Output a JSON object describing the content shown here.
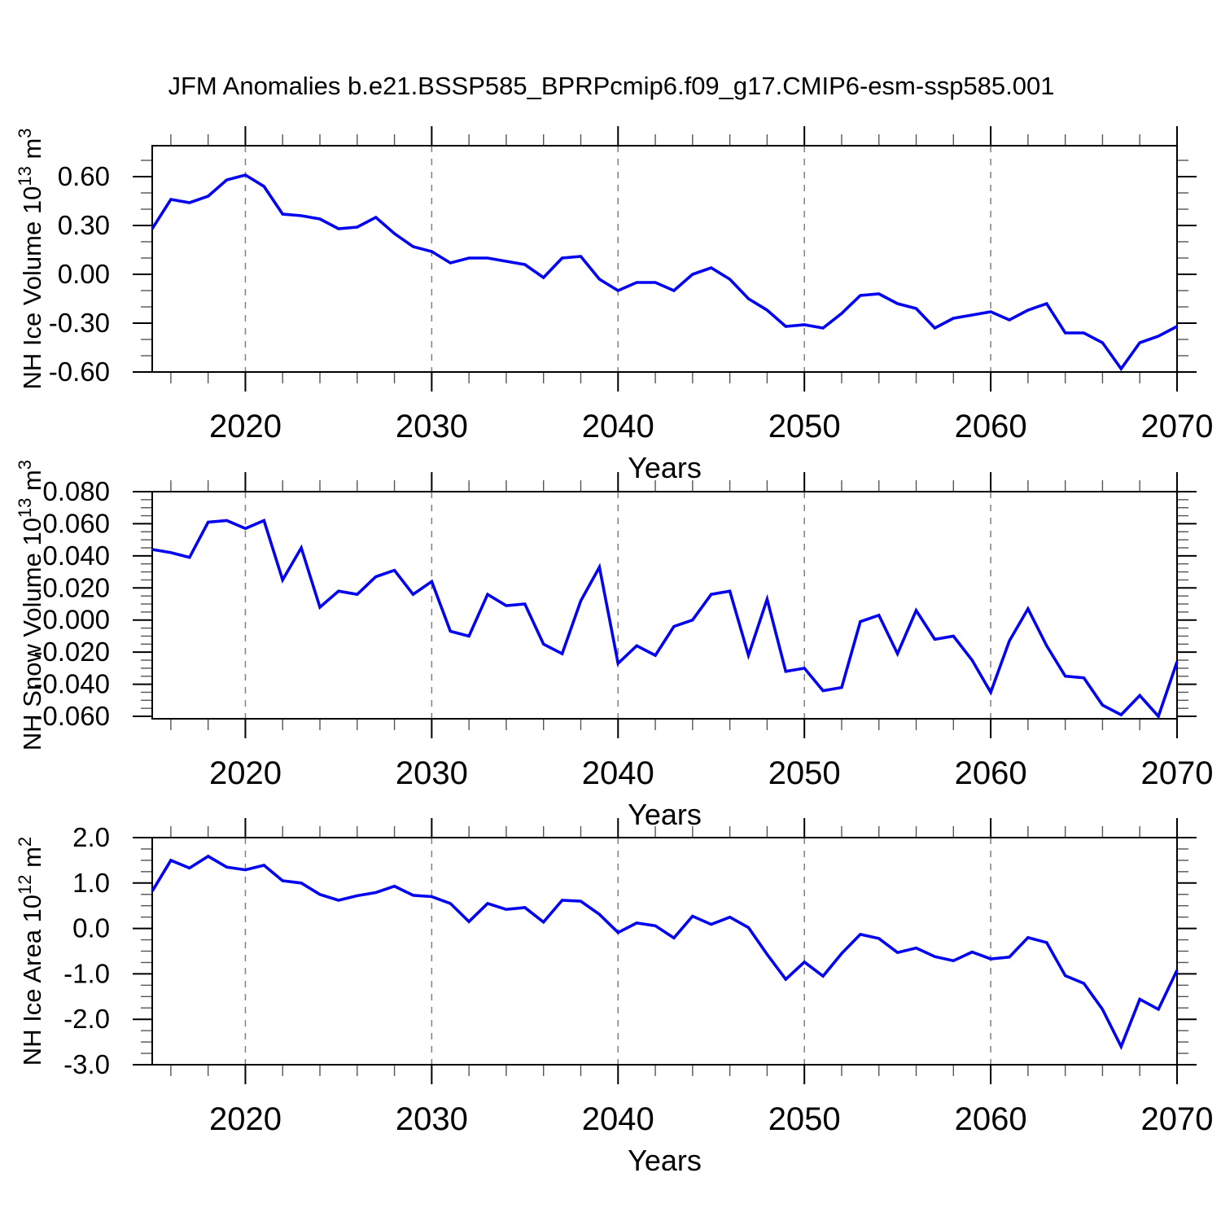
{
  "title": "JFM Anomalies b.e21.BSSP585_BPRPcmip6.f09_g17.CMIP6-esm-ssp585.001",
  "colors": {
    "line": "#0202f0",
    "axis": "#000000",
    "grid": "#808080",
    "minor_tick": "#555555",
    "background": "#ffffff"
  },
  "years": [
    2015,
    2016,
    2017,
    2018,
    2019,
    2020,
    2021,
    2022,
    2023,
    2024,
    2025,
    2026,
    2027,
    2028,
    2029,
    2030,
    2031,
    2032,
    2033,
    2034,
    2035,
    2036,
    2037,
    2038,
    2039,
    2040,
    2041,
    2042,
    2043,
    2044,
    2045,
    2046,
    2047,
    2048,
    2049,
    2050,
    2051,
    2052,
    2053,
    2054,
    2055,
    2056,
    2057,
    2058,
    2059,
    2060,
    2061,
    2062,
    2063,
    2064,
    2065,
    2066,
    2067,
    2068,
    2069,
    2070
  ],
  "chart_data": [
    {
      "id": "ice-volume",
      "type": "line",
      "ylabel": "NH Ice Volume 10^13 m^3",
      "ylabel_rich": {
        "pre": "NH Ice Volume 10",
        "sup1": "13",
        "mid": " m",
        "sup2": "3"
      },
      "xlabel": "Years",
      "ylim": [
        -0.6,
        0.79
      ],
      "yticks": [
        0.6,
        0.3,
        0.0,
        -0.3,
        -0.6
      ],
      "ytick_labels": [
        "0.60",
        "0.30",
        "0.00",
        "-0.30",
        "-0.60"
      ],
      "y_minor_step": 0.1,
      "xticks": [
        2020,
        2030,
        2040,
        2050,
        2060,
        2070
      ],
      "xtick_labels": [
        "2020",
        "2030",
        "2040",
        "2050",
        "2060",
        "2070"
      ],
      "x_minor_step": 2,
      "grid_years": [
        2020,
        2030,
        2040,
        2050,
        2060
      ],
      "xlim": [
        2015,
        2070
      ],
      "values": [
        0.28,
        0.46,
        0.44,
        0.48,
        0.58,
        0.61,
        0.54,
        0.37,
        0.36,
        0.34,
        0.28,
        0.29,
        0.35,
        0.25,
        0.17,
        0.14,
        0.07,
        0.1,
        0.1,
        0.08,
        0.06,
        -0.02,
        0.1,
        0.11,
        -0.03,
        -0.1,
        -0.05,
        -0.05,
        -0.1,
        0.0,
        0.04,
        -0.03,
        -0.15,
        -0.22,
        -0.32,
        -0.31,
        -0.33,
        -0.24,
        -0.13,
        -0.12,
        -0.18,
        -0.21,
        -0.33,
        -0.27,
        -0.25,
        -0.23,
        -0.28,
        -0.22,
        -0.18,
        -0.36,
        -0.36,
        -0.42,
        -0.58,
        -0.42,
        -0.38,
        -0.32
      ]
    },
    {
      "id": "snow-volume",
      "type": "line",
      "ylabel": "NH Snow Volume 10^13 m^3",
      "ylabel_rich": {
        "pre": "NH Snow Volume 10",
        "sup1": "13",
        "mid": " m",
        "sup2": "3"
      },
      "xlabel": "Years",
      "ylim": [
        -0.0615,
        0.08
      ],
      "yticks": [
        0.08,
        0.06,
        0.04,
        0.02,
        0.0,
        -0.02,
        -0.04,
        -0.06
      ],
      "ytick_labels": [
        "0.080",
        "0.060",
        "0.040",
        "0.020",
        "0.000",
        "-0.020",
        "-0.040",
        "-0.060"
      ],
      "y_minor_step": 0.005,
      "xticks": [
        2020,
        2030,
        2040,
        2050,
        2060,
        2070
      ],
      "xtick_labels": [
        "2020",
        "2030",
        "2040",
        "2050",
        "2060",
        "2070"
      ],
      "x_minor_step": 2,
      "grid_years": [
        2020,
        2030,
        2040,
        2050,
        2060
      ],
      "xlim": [
        2015,
        2070
      ],
      "values": [
        0.044,
        0.042,
        0.039,
        0.061,
        0.062,
        0.057,
        0.062,
        0.025,
        0.045,
        0.008,
        0.018,
        0.016,
        0.027,
        0.031,
        0.016,
        0.024,
        -0.007,
        -0.01,
        0.016,
        0.009,
        0.01,
        -0.015,
        -0.021,
        0.012,
        0.033,
        -0.027,
        -0.016,
        -0.022,
        -0.004,
        0.0,
        0.016,
        0.018,
        -0.022,
        0.013,
        -0.032,
        -0.03,
        -0.044,
        -0.042,
        -0.001,
        0.003,
        -0.021,
        0.006,
        -0.012,
        -0.01,
        -0.025,
        -0.045,
        -0.013,
        0.007,
        -0.016,
        -0.035,
        -0.036,
        -0.053,
        -0.059,
        -0.047,
        -0.06,
        -0.026
      ]
    },
    {
      "id": "ice-area",
      "type": "line",
      "ylabel": "NH Ice Area 10^12 m^2",
      "ylabel_rich": {
        "pre": "NH Ice Area 10",
        "sup1": "12",
        "mid": " m",
        "sup2": "2"
      },
      "xlabel": "Years",
      "ylim": [
        -3.0,
        2.0
      ],
      "yticks": [
        2.0,
        1.0,
        0.0,
        -1.0,
        -2.0,
        -3.0
      ],
      "ytick_labels": [
        "2.0",
        "1.0",
        "0.0",
        "-1.0",
        "-2.0",
        "-3.0"
      ],
      "y_minor_step": 0.25,
      "xticks": [
        2020,
        2030,
        2040,
        2050,
        2060,
        2070
      ],
      "xtick_labels": [
        "2020",
        "2030",
        "2040",
        "2050",
        "2060",
        "2070"
      ],
      "x_minor_step": 2,
      "grid_years": [
        2020,
        2030,
        2040,
        2050,
        2060
      ],
      "xlim": [
        2015,
        2070
      ],
      "values": [
        0.82,
        1.5,
        1.33,
        1.59,
        1.35,
        1.29,
        1.39,
        1.05,
        1.0,
        0.75,
        0.62,
        0.72,
        0.79,
        0.93,
        0.73,
        0.7,
        0.55,
        0.15,
        0.55,
        0.42,
        0.46,
        0.14,
        0.62,
        0.6,
        0.31,
        -0.09,
        0.12,
        0.06,
        -0.21,
        0.27,
        0.09,
        0.25,
        0.02,
        -0.57,
        -1.12,
        -0.74,
        -1.05,
        -0.55,
        -0.13,
        -0.22,
        -0.53,
        -0.43,
        -0.62,
        -0.71,
        -0.52,
        -0.67,
        -0.63,
        -0.2,
        -0.31,
        -1.04,
        -1.21,
        -1.78,
        -2.6,
        -1.56,
        -1.78,
        -0.92
      ]
    }
  ]
}
